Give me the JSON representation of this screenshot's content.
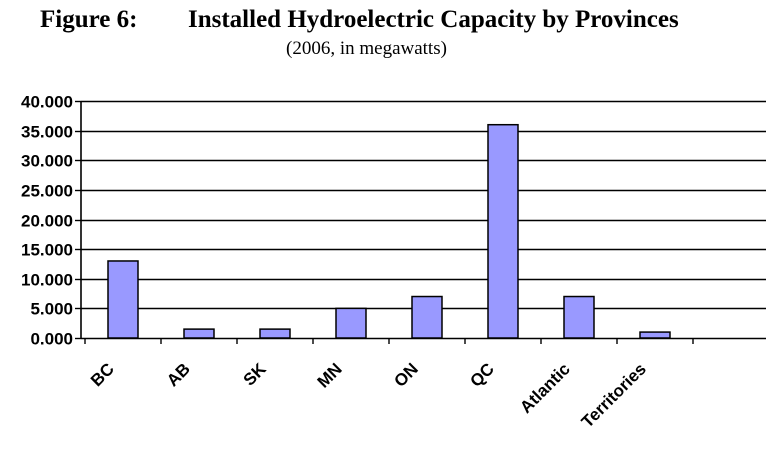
{
  "figure": {
    "label": "Figure 6:",
    "caption": "Installed Hydroelectric Capacity by Provinces",
    "subtitle": "(2006, in megawatts)"
  },
  "chart_data": {
    "type": "bar",
    "title": "Installed Hydroelectric Capacity by Provinces",
    "subtitle": "(2006, in megawatts)",
    "categories": [
      "BC",
      "AB",
      "SK",
      "MN",
      "ON",
      "QC",
      "Atlantic",
      "Territories"
    ],
    "values": [
      13000,
      1500,
      1500,
      5000,
      7000,
      36000,
      7000,
      1000
    ],
    "y_ticks": [
      0,
      5000,
      10000,
      15000,
      20000,
      25000,
      30000,
      35000,
      40000
    ],
    "y_tick_labels": [
      "0.000",
      "5.000",
      "10.000",
      "15.000",
      "20.000",
      "25.000",
      "30.000",
      "35.000",
      "40.000"
    ],
    "ylim": [
      0,
      40000
    ],
    "xlabel": "",
    "ylabel": "",
    "grid": true,
    "bar_color": "#9999ff",
    "bar_edge_color": "#000000"
  }
}
